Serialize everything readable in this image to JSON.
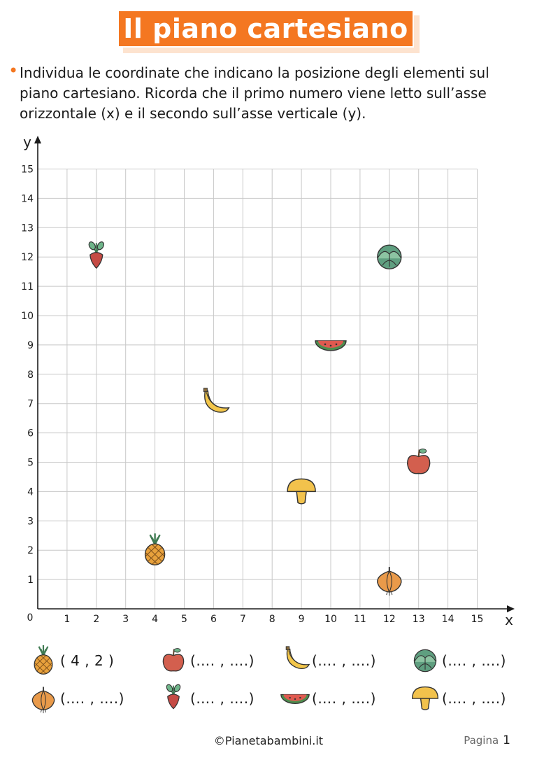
{
  "title": "Il piano cartesiano",
  "instruction": "Individua le coordinate che indicano la posizione degli elementi sul piano cartesiano. Ricorda che il primo numero viene letto sull’asse orizzontale (x) e il secondo sull’asse verticale (y).",
  "chart_data": {
    "type": "scatter",
    "xlabel": "x",
    "ylabel": "y",
    "xlim": [
      0,
      15
    ],
    "ylim": [
      0,
      15
    ],
    "grid": true,
    "origin_label": "0",
    "x_ticks": [
      "1",
      "2",
      "3",
      "4",
      "5",
      "6",
      "7",
      "8",
      "9",
      "10",
      "11",
      "12",
      "13",
      "14",
      "15"
    ],
    "y_ticks": [
      "1",
      "2",
      "3",
      "4",
      "5",
      "6",
      "7",
      "8",
      "9",
      "10",
      "11",
      "12",
      "13",
      "14",
      "15"
    ],
    "points": [
      {
        "icon": "beet-icon",
        "x": 2,
        "y": 12
      },
      {
        "icon": "cabbage-icon",
        "x": 12,
        "y": 12
      },
      {
        "icon": "watermelon-icon",
        "x": 10,
        "y": 9
      },
      {
        "icon": "banana-icon",
        "x": 6,
        "y": 7
      },
      {
        "icon": "apple-icon",
        "x": 13,
        "y": 5
      },
      {
        "icon": "mushroom-icon",
        "x": 9,
        "y": 4
      },
      {
        "icon": "pineapple-icon",
        "x": 4,
        "y": 2
      },
      {
        "icon": "onion-icon",
        "x": 12,
        "y": 1
      }
    ]
  },
  "legend": [
    {
      "icon": "pineapple-icon",
      "text": "( 4 , 2 )"
    },
    {
      "icon": "apple-icon",
      "text": "(…. , ….)"
    },
    {
      "icon": "banana-icon",
      "text": "(…. , ….)"
    },
    {
      "icon": "cabbage-icon",
      "text": "(…. , ….)"
    },
    {
      "icon": "onion-icon",
      "text": "(…. , ….)"
    },
    {
      "icon": "beet-icon",
      "text": "(…. , ….)"
    },
    {
      "icon": "watermelon-icon",
      "text": "(…. , ….)"
    },
    {
      "icon": "mushroom-icon",
      "text": "(…. , ….)"
    }
  ],
  "footer": {
    "site": "©Pianetabambini.it",
    "page_label": "Pagina",
    "page_number": "1"
  },
  "colors": {
    "accent": "#f47721",
    "grid": "#c8c8c8",
    "axis": "#1a1a1a"
  }
}
